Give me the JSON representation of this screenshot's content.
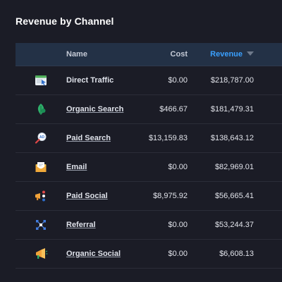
{
  "title": "Revenue by Channel",
  "columns": {
    "name": "Name",
    "cost": "Cost",
    "revenue": "Revenue"
  },
  "sort": {
    "column": "revenue",
    "direction": "descending",
    "icon": "caret-down-icon"
  },
  "colors": {
    "accent": "#3aa0ff",
    "header_bg": "#233146",
    "bg": "#1b1c26"
  },
  "rows": [
    {
      "name": "Direct Traffic",
      "link": false,
      "cost": "$0.00",
      "revenue": "$218,787.00",
      "icon": "browser-window-icon"
    },
    {
      "name": "Organic Search",
      "link": true,
      "cost": "$466.67",
      "revenue": "$181,479.31",
      "icon": "leaf-icon"
    },
    {
      "name": "Paid Search",
      "link": true,
      "cost": "$13,159.83",
      "revenue": "$138,643.12",
      "icon": "magnifier-ad-icon"
    },
    {
      "name": "Email",
      "link": true,
      "cost": "$0.00",
      "revenue": "$82,969.01",
      "icon": "envelope-icon"
    },
    {
      "name": "Paid Social",
      "link": true,
      "cost": "$8,975.92",
      "revenue": "$56,665.41",
      "icon": "megaphone-social-icon"
    },
    {
      "name": "Referral",
      "link": true,
      "cost": "$0.00",
      "revenue": "$53,244.37",
      "icon": "network-nodes-icon"
    },
    {
      "name": "Organic Social",
      "link": true,
      "cost": "$0.00",
      "revenue": "$6,608.13",
      "icon": "megaphone-icon"
    }
  ]
}
